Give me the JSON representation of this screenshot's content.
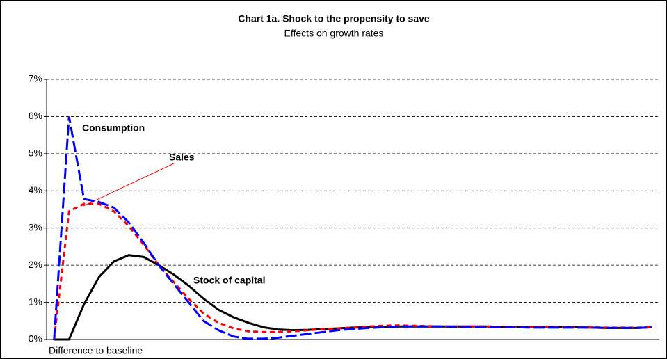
{
  "chart_data": {
    "type": "line",
    "title": "Chart 1a. Shock to the propensity to save",
    "subtitle": "Effects on growth rates",
    "note": "Difference to baseline",
    "categories": [
      null,
      null,
      null,
      null,
      null,
      null,
      null,
      null,
      null,
      null,
      null,
      null,
      null,
      null,
      null,
      null,
      null,
      null,
      null,
      null,
      null,
      null,
      null,
      null,
      null,
      null,
      null,
      null,
      null,
      null,
      null,
      null,
      null,
      null,
      null,
      null,
      null,
      null,
      null,
      null,
      null
    ],
    "series": [
      {
        "name": "Consumption",
        "color": "#0000ff",
        "dash": true,
        "values": [
          0,
          6.0,
          3.78,
          3.7,
          3.55,
          3.15,
          2.6,
          2.0,
          1.5,
          1.0,
          0.5,
          0.25,
          0.08,
          0.02,
          0.02,
          0.05,
          0.1,
          0.15,
          0.2,
          0.25,
          0.28,
          0.31,
          0.33,
          0.35,
          0.35,
          0.35,
          0.35,
          0.34,
          0.33,
          0.33,
          0.33,
          0.33,
          0.32,
          0.32,
          0.32,
          0.32,
          0.32,
          0.31,
          0.31,
          0.31,
          0.33
        ]
      },
      {
        "name": "Sales",
        "color": "#ff0000",
        "dash": true,
        "values": [
          0,
          3.45,
          3.65,
          3.65,
          3.45,
          3.05,
          2.55,
          2.0,
          1.55,
          1.1,
          0.7,
          0.45,
          0.3,
          0.22,
          0.2,
          0.2,
          0.22,
          0.25,
          0.28,
          0.3,
          0.32,
          0.35,
          0.37,
          0.38,
          0.37,
          0.36,
          0.35,
          0.35,
          0.35,
          0.35,
          0.34,
          0.34,
          0.34,
          0.34,
          0.33,
          0.33,
          0.33,
          0.32,
          0.32,
          0.32,
          0.33
        ]
      },
      {
        "name": "Stock of capital",
        "color": "#000000",
        "dash": false,
        "values": [
          0,
          0,
          0.95,
          1.68,
          2.1,
          2.27,
          2.22,
          2.0,
          1.75,
          1.45,
          1.1,
          0.8,
          0.6,
          0.45,
          0.33,
          0.27,
          0.25,
          0.26,
          0.28,
          0.3,
          0.32,
          0.33,
          0.34,
          0.35,
          0.35,
          0.35,
          0.35,
          0.35,
          0.35,
          0.35,
          0.34,
          0.34,
          0.34,
          0.34,
          0.34,
          0.33,
          0.32,
          0.31,
          0.31,
          0.31,
          0.33
        ]
      }
    ],
    "ylim": [
      0,
      7
    ],
    "yticks": [
      {
        "value": 0,
        "label": "0%"
      },
      {
        "value": 1,
        "label": "1%"
      },
      {
        "value": 2,
        "label": "2%"
      },
      {
        "value": 3,
        "label": "3%"
      },
      {
        "value": 4,
        "label": "4%"
      },
      {
        "value": 5,
        "label": "5%"
      },
      {
        "value": 6,
        "label": "6%"
      },
      {
        "value": 7,
        "label": "7%"
      }
    ],
    "grid": true
  }
}
